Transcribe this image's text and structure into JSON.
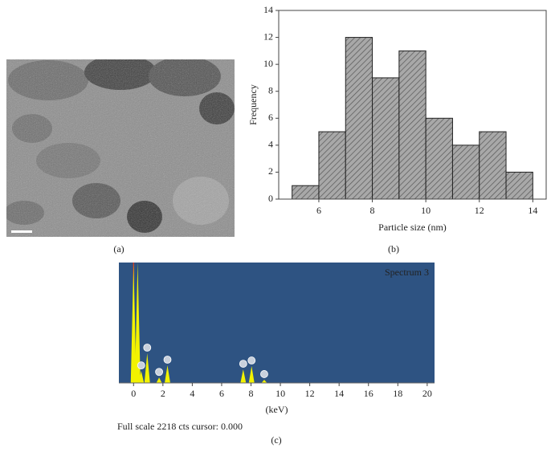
{
  "panel_labels": [
    "(a)",
    "(b)",
    "(c)"
  ],
  "chart_data": [
    {
      "type": "histogram",
      "xlabel": "Particle size (nm)",
      "ylabel": "Frequency",
      "bins": [
        5,
        6,
        7,
        8,
        9,
        10,
        11,
        12,
        13,
        14
      ],
      "values": [
        1,
        5,
        12,
        9,
        11,
        6,
        4,
        5,
        2
      ],
      "color": "#a0a0a0",
      "xlim": [
        4.5,
        14.5
      ],
      "ylim": [
        0,
        14
      ],
      "xticks": [
        6,
        8,
        10,
        12,
        14
      ],
      "yticks": [
        0,
        2,
        4,
        6,
        8,
        10,
        12,
        14
      ]
    },
    {
      "type": "spectrum",
      "title": "Spectrum 3",
      "xlabel": "(keV)",
      "annotation": "Full scale 2218 cts cursor: 0.000",
      "x": [
        0,
        0.28,
        0.52,
        0.93,
        1.74,
        2.31,
        7.47,
        8.04,
        8.9
      ],
      "values": [
        2218,
        2218,
        220,
        547,
        100,
        325,
        250,
        310,
        60
      ],
      "color": "#f2f200",
      "xlim": [
        -1,
        20.5
      ],
      "ylim": [
        0,
        2218
      ],
      "xticks": [
        0,
        2,
        4,
        6,
        8,
        10,
        12,
        14,
        16,
        18,
        20
      ]
    }
  ]
}
